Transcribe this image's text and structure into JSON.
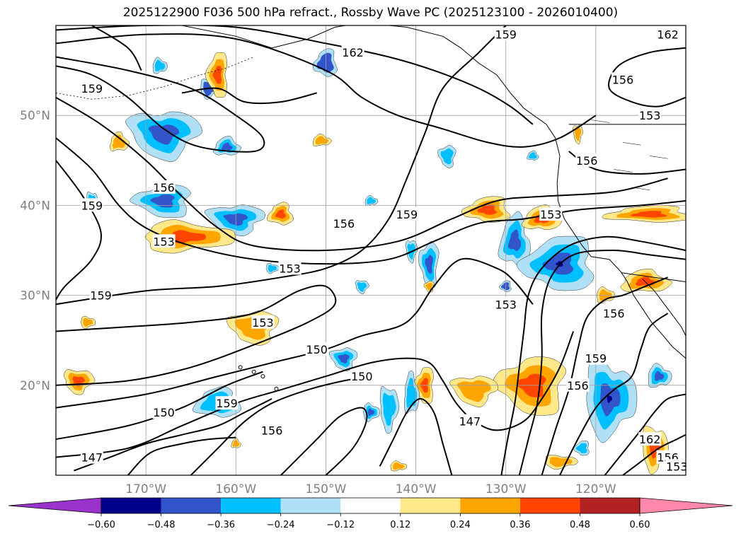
{
  "chart_data": {
    "type": "heatmap",
    "title": "2025122900 F036 500 hPa refract., Rossby Wave PC (2025123100 - 2026010400)",
    "x_ticks": [
      "170°W",
      "160°W",
      "150°W",
      "140°W",
      "130°W",
      "120°W"
    ],
    "x_tick_values": [
      -170,
      -160,
      -150,
      -140,
      -130,
      -120
    ],
    "y_ticks": [
      "50°N",
      "40°N",
      "30°N",
      "20°N"
    ],
    "y_tick_values": [
      50,
      40,
      30,
      20
    ],
    "xlim": [
      -180,
      -110
    ],
    "ylim": [
      10,
      60
    ],
    "grid": true,
    "colorbar": {
      "levels": [
        "-0.60",
        "-0.48",
        "-0.36",
        "-0.24",
        "-0.12",
        "0.12",
        "0.24",
        "0.36",
        "0.48",
        "0.60"
      ],
      "colors": [
        "#9933cc",
        "#00008b",
        "#3355cc",
        "#00bfff",
        "#b0e0f5",
        "#ffffff",
        "#ffe88a",
        "#ffa500",
        "#ff4500",
        "#b22222",
        "#ff88aa"
      ],
      "extend": "both"
    },
    "contour_labels": [
      {
        "text": "159",
        "lon": -176,
        "lat": 53
      },
      {
        "text": "162",
        "lon": -147,
        "lat": 57
      },
      {
        "text": "159",
        "lon": -130,
        "lat": 59
      },
      {
        "text": "162",
        "lon": -112,
        "lat": 59
      },
      {
        "text": "156",
        "lon": -117,
        "lat": 54
      },
      {
        "text": "153",
        "lon": -114,
        "lat": 50
      },
      {
        "text": "156",
        "lon": -121,
        "lat": 45
      },
      {
        "text": "153",
        "lon": -125,
        "lat": 39
      },
      {
        "text": "159",
        "lon": -141,
        "lat": 39
      },
      {
        "text": "156",
        "lon": -168,
        "lat": 42
      },
      {
        "text": "159",
        "lon": -176,
        "lat": 40
      },
      {
        "text": "153",
        "lon": -168,
        "lat": 36
      },
      {
        "text": "156",
        "lon": -148,
        "lat": 38
      },
      {
        "text": "153",
        "lon": -154,
        "lat": 33
      },
      {
        "text": "159",
        "lon": -175,
        "lat": 30
      },
      {
        "text": "153",
        "lon": -157,
        "lat": 27
      },
      {
        "text": "150",
        "lon": -151,
        "lat": 24
      },
      {
        "text": "150",
        "lon": -146,
        "lat": 21
      },
      {
        "text": "153",
        "lon": -130,
        "lat": 29
      },
      {
        "text": "156",
        "lon": -118,
        "lat": 28
      },
      {
        "text": "159",
        "lon": -120,
        "lat": 23
      },
      {
        "text": "156",
        "lon": -122,
        "lat": 20
      },
      {
        "text": "147",
        "lon": -134,
        "lat": 16
      },
      {
        "text": "150",
        "lon": -168,
        "lat": 17
      },
      {
        "text": "159",
        "lon": -161,
        "lat": 18
      },
      {
        "text": "156",
        "lon": -156,
        "lat": 15
      },
      {
        "text": "147",
        "lon": -176,
        "lat": 12
      },
      {
        "text": "162",
        "lon": -114,
        "lat": 14
      },
      {
        "text": "156",
        "lon": -112,
        "lat": 12
      },
      {
        "text": "153",
        "lon": -111,
        "lat": 11
      }
    ]
  }
}
